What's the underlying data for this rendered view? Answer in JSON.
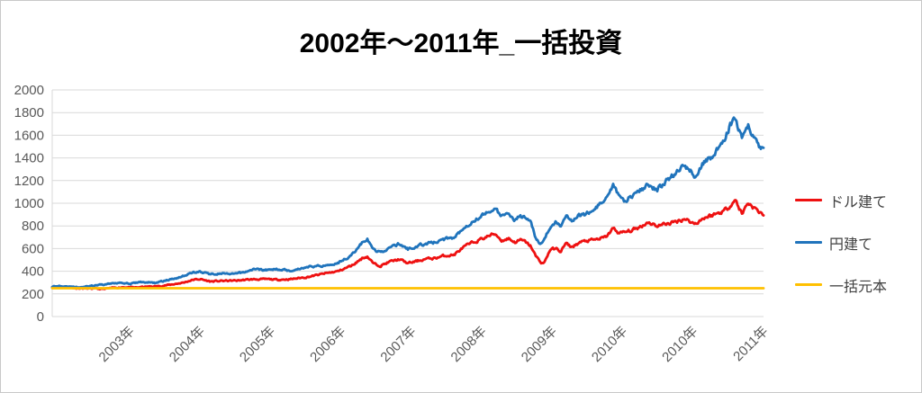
{
  "chart_data": {
    "type": "line",
    "title": "2002年～2011年_一括投資",
    "x_ticks": [
      "2003年",
      "2004年",
      "2005年",
      "2006年",
      "2007年",
      "2008年",
      "2009年",
      "2010年",
      "2010年",
      "2011年"
    ],
    "y_ticks": [
      0,
      200,
      400,
      600,
      800,
      1000,
      1200,
      1400,
      1600,
      1800,
      2000
    ],
    "ylim": [
      0,
      2000
    ],
    "grid": "horizontal-only",
    "legend_position": "right",
    "axis_label_color": "#595959",
    "gridline_color": "#d9d9d9",
    "series": [
      {
        "name": "ドル建て",
        "color": "#ee1111",
        "anchors": [
          [
            0.0,
            258
          ],
          [
            0.015,
            263
          ],
          [
            0.035,
            250
          ],
          [
            0.055,
            247
          ],
          [
            0.07,
            243
          ],
          [
            0.085,
            252
          ],
          [
            0.1,
            260
          ],
          [
            0.115,
            255
          ],
          [
            0.13,
            262
          ],
          [
            0.15,
            268
          ],
          [
            0.165,
            280
          ],
          [
            0.185,
            300
          ],
          [
            0.198,
            325
          ],
          [
            0.208,
            330
          ],
          [
            0.222,
            310
          ],
          [
            0.24,
            315
          ],
          [
            0.26,
            318
          ],
          [
            0.28,
            328
          ],
          [
            0.302,
            330
          ],
          [
            0.318,
            325
          ],
          [
            0.335,
            330
          ],
          [
            0.36,
            350
          ],
          [
            0.383,
            380
          ],
          [
            0.402,
            400
          ],
          [
            0.421,
            450
          ],
          [
            0.437,
            520
          ],
          [
            0.443,
            530
          ],
          [
            0.452,
            465
          ],
          [
            0.462,
            450
          ],
          [
            0.475,
            485
          ],
          [
            0.488,
            505
          ],
          [
            0.5,
            470
          ],
          [
            0.512,
            488
          ],
          [
            0.525,
            508
          ],
          [
            0.538,
            515
          ],
          [
            0.55,
            535
          ],
          [
            0.565,
            545
          ],
          [
            0.578,
            610
          ],
          [
            0.59,
            650
          ],
          [
            0.602,
            680
          ],
          [
            0.615,
            715
          ],
          [
            0.623,
            730
          ],
          [
            0.632,
            670
          ],
          [
            0.642,
            690
          ],
          [
            0.65,
            655
          ],
          [
            0.658,
            675
          ],
          [
            0.665,
            660
          ],
          [
            0.673,
            620
          ],
          [
            0.68,
            530
          ],
          [
            0.687,
            480
          ],
          [
            0.691,
            468
          ],
          [
            0.7,
            590
          ],
          [
            0.708,
            600
          ],
          [
            0.715,
            575
          ],
          [
            0.722,
            645
          ],
          [
            0.73,
            612
          ],
          [
            0.742,
            655
          ],
          [
            0.752,
            668
          ],
          [
            0.765,
            680
          ],
          [
            0.778,
            700
          ],
          [
            0.789,
            780
          ],
          [
            0.797,
            735
          ],
          [
            0.805,
            745
          ],
          [
            0.815,
            760
          ],
          [
            0.826,
            790
          ],
          [
            0.838,
            835
          ],
          [
            0.85,
            800
          ],
          [
            0.864,
            820
          ],
          [
            0.876,
            835
          ],
          [
            0.889,
            865
          ],
          [
            0.903,
            818
          ],
          [
            0.916,
            870
          ],
          [
            0.928,
            895
          ],
          [
            0.94,
            920
          ],
          [
            0.95,
            960
          ],
          [
            0.96,
            1030
          ],
          [
            0.97,
            905
          ],
          [
            0.978,
            1010
          ],
          [
            0.988,
            950
          ],
          [
            1.0,
            900
          ]
        ]
      },
      {
        "name": "円建て",
        "color": "#2074bc",
        "anchors": [
          [
            0.0,
            265
          ],
          [
            0.015,
            272
          ],
          [
            0.035,
            258
          ],
          [
            0.055,
            268
          ],
          [
            0.075,
            285
          ],
          [
            0.095,
            302
          ],
          [
            0.11,
            290
          ],
          [
            0.125,
            305
          ],
          [
            0.145,
            298
          ],
          [
            0.165,
            325
          ],
          [
            0.185,
            360
          ],
          [
            0.198,
            390
          ],
          [
            0.208,
            395
          ],
          [
            0.222,
            375
          ],
          [
            0.24,
            380
          ],
          [
            0.252,
            372
          ],
          [
            0.27,
            392
          ],
          [
            0.285,
            420
          ],
          [
            0.302,
            410
          ],
          [
            0.318,
            420
          ],
          [
            0.335,
            405
          ],
          [
            0.36,
            440
          ],
          [
            0.383,
            450
          ],
          [
            0.402,
            476
          ],
          [
            0.421,
            543
          ],
          [
            0.437,
            660
          ],
          [
            0.443,
            680
          ],
          [
            0.452,
            590
          ],
          [
            0.462,
            565
          ],
          [
            0.475,
            610
          ],
          [
            0.488,
            640
          ],
          [
            0.5,
            595
          ],
          [
            0.512,
            618
          ],
          [
            0.525,
            645
          ],
          [
            0.538,
            655
          ],
          [
            0.55,
            680
          ],
          [
            0.565,
            700
          ],
          [
            0.578,
            780
          ],
          [
            0.59,
            840
          ],
          [
            0.602,
            880
          ],
          [
            0.615,
            935
          ],
          [
            0.623,
            950
          ],
          [
            0.632,
            880
          ],
          [
            0.642,
            900
          ],
          [
            0.65,
            860
          ],
          [
            0.658,
            885
          ],
          [
            0.665,
            870
          ],
          [
            0.673,
            820
          ],
          [
            0.68,
            690
          ],
          [
            0.687,
            645
          ],
          [
            0.692,
            680
          ],
          [
            0.7,
            790
          ],
          [
            0.708,
            830
          ],
          [
            0.715,
            805
          ],
          [
            0.722,
            905
          ],
          [
            0.73,
            850
          ],
          [
            0.74,
            890
          ],
          [
            0.75,
            900
          ],
          [
            0.76,
            945
          ],
          [
            0.77,
            990
          ],
          [
            0.78,
            1040
          ],
          [
            0.789,
            1150
          ],
          [
            0.797,
            1060
          ],
          [
            0.805,
            1020
          ],
          [
            0.815,
            1070
          ],
          [
            0.826,
            1110
          ],
          [
            0.838,
            1160
          ],
          [
            0.85,
            1120
          ],
          [
            0.864,
            1200
          ],
          [
            0.876,
            1260
          ],
          [
            0.889,
            1335
          ],
          [
            0.903,
            1250
          ],
          [
            0.916,
            1360
          ],
          [
            0.928,
            1420
          ],
          [
            0.94,
            1500
          ],
          [
            0.95,
            1640
          ],
          [
            0.96,
            1770
          ],
          [
            0.97,
            1545
          ],
          [
            0.978,
            1690
          ],
          [
            0.988,
            1570
          ],
          [
            1.0,
            1455
          ]
        ]
      },
      {
        "name": "一括元本",
        "color": "#ffc000",
        "flat": true,
        "anchors": [
          [
            0.0,
            250
          ],
          [
            1.0,
            250
          ]
        ]
      }
    ]
  }
}
